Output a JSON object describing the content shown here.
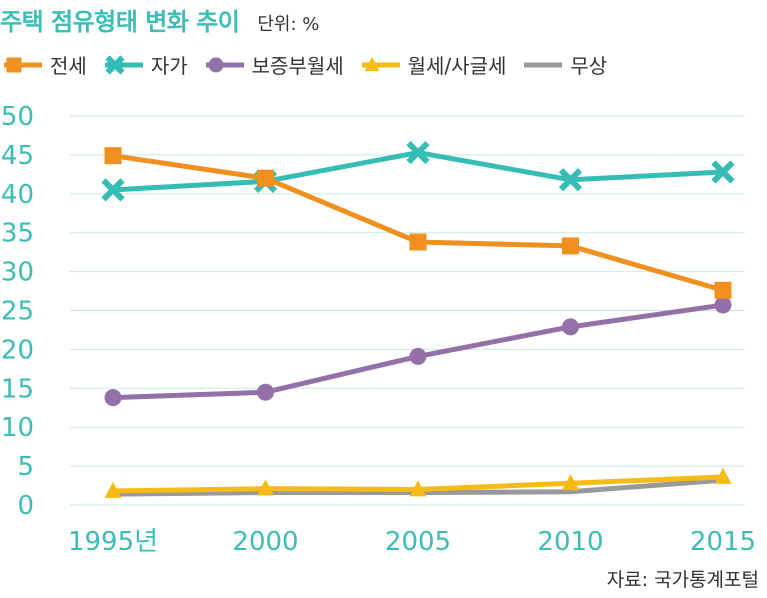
{
  "header": {
    "title": "주택 점유형태 변화 추이",
    "unit": "단위: %"
  },
  "source": "자료: 국가통계포털",
  "chart_data": {
    "type": "line",
    "categories": [
      "1995년",
      "2000",
      "2005",
      "2010",
      "2015"
    ],
    "ylim": [
      0,
      50
    ],
    "yticks": [
      0,
      5,
      10,
      15,
      20,
      25,
      30,
      35,
      40,
      45,
      50
    ],
    "grid": true,
    "legend_position": "top-left",
    "series": [
      {
        "name": "전세",
        "color": "#f0901e",
        "marker": "square",
        "values": [
          44.9,
          42.0,
          33.8,
          33.3,
          27.6
        ]
      },
      {
        "name": "자가",
        "color": "#35bdb5",
        "marker": "x",
        "values": [
          40.5,
          41.6,
          45.3,
          41.8,
          42.8
        ]
      },
      {
        "name": "보증부월세",
        "color": "#9370a8",
        "marker": "circle",
        "values": [
          13.8,
          14.5,
          19.1,
          22.9,
          25.7
        ]
      },
      {
        "name": "월세/사글세",
        "color": "#f6bb16",
        "marker": "triangle",
        "values": [
          1.8,
          2.1,
          2.0,
          2.8,
          3.6
        ]
      },
      {
        "name": "무상",
        "color": "#999999",
        "marker": "none",
        "values": [
          1.4,
          1.6,
          1.6,
          1.7,
          3.2
        ]
      }
    ]
  }
}
